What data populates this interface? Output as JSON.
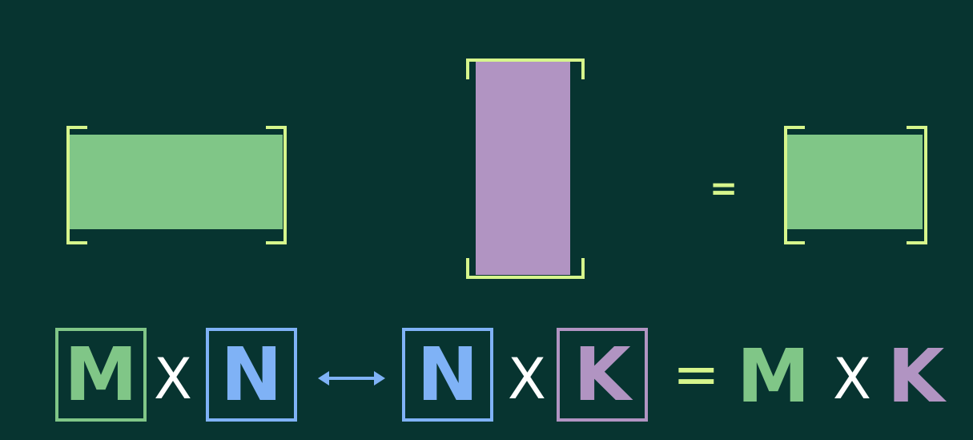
{
  "colors": {
    "background": "#073430",
    "green": "#80c687",
    "purple": "#b194c2",
    "blue": "#7fb2f6",
    "bracket": "#d6f58c",
    "text": "#ffffff"
  },
  "equation_top": {
    "equals": "="
  },
  "equation": {
    "m1": "M",
    "times1": "X",
    "n1": "N",
    "n2": "N",
    "times2": "X",
    "k1": "K",
    "equals": "=",
    "m2": "M",
    "times3": "X",
    "k2": "K"
  },
  "icons": {
    "arrow": "double-arrow-icon"
  }
}
